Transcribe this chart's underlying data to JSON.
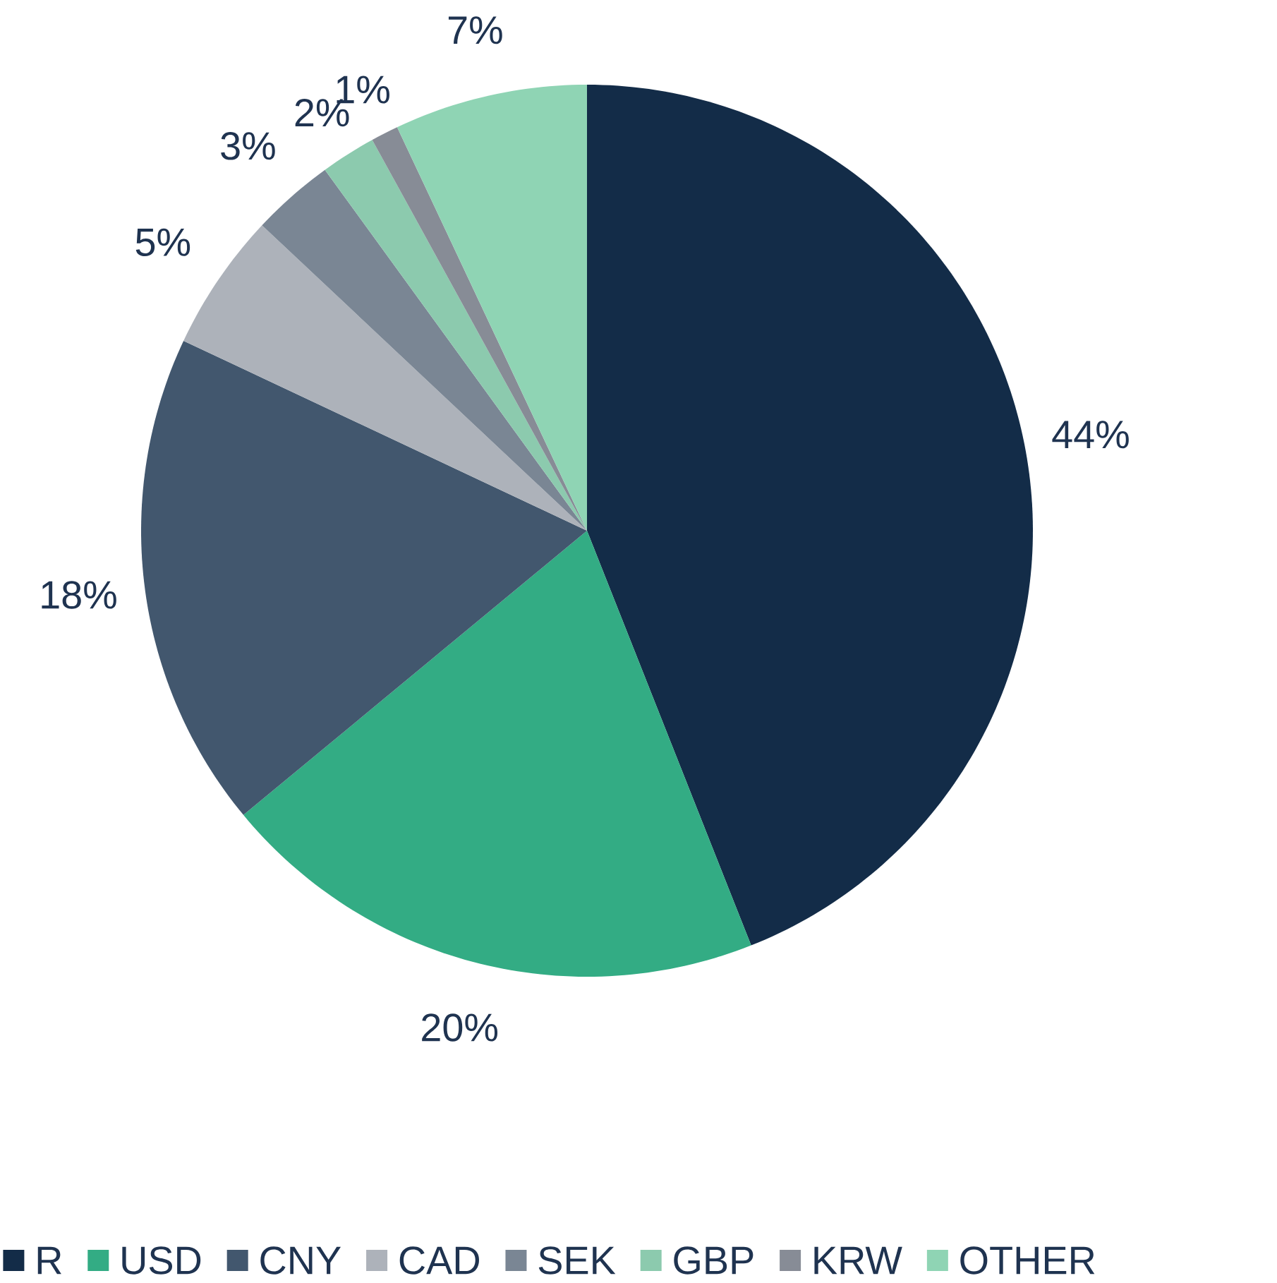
{
  "chart_data": {
    "type": "pie",
    "categories": [
      "R",
      "USD",
      "CNY",
      "CAD",
      "SEK",
      "GBP",
      "KRW",
      "OTHER"
    ],
    "values": [
      44,
      20,
      18,
      5,
      3,
      2,
      1,
      7
    ],
    "value_labels": [
      "44%",
      "20%",
      "18%",
      "5%",
      "3%",
      "2%",
      "1%",
      "7%"
    ],
    "colors": [
      "#132c48",
      "#33ac84",
      "#42576e",
      "#adb2ba",
      "#7a8694",
      "#8ccaae",
      "#878c96",
      "#8fd4b4"
    ],
    "legend": "bottom"
  }
}
